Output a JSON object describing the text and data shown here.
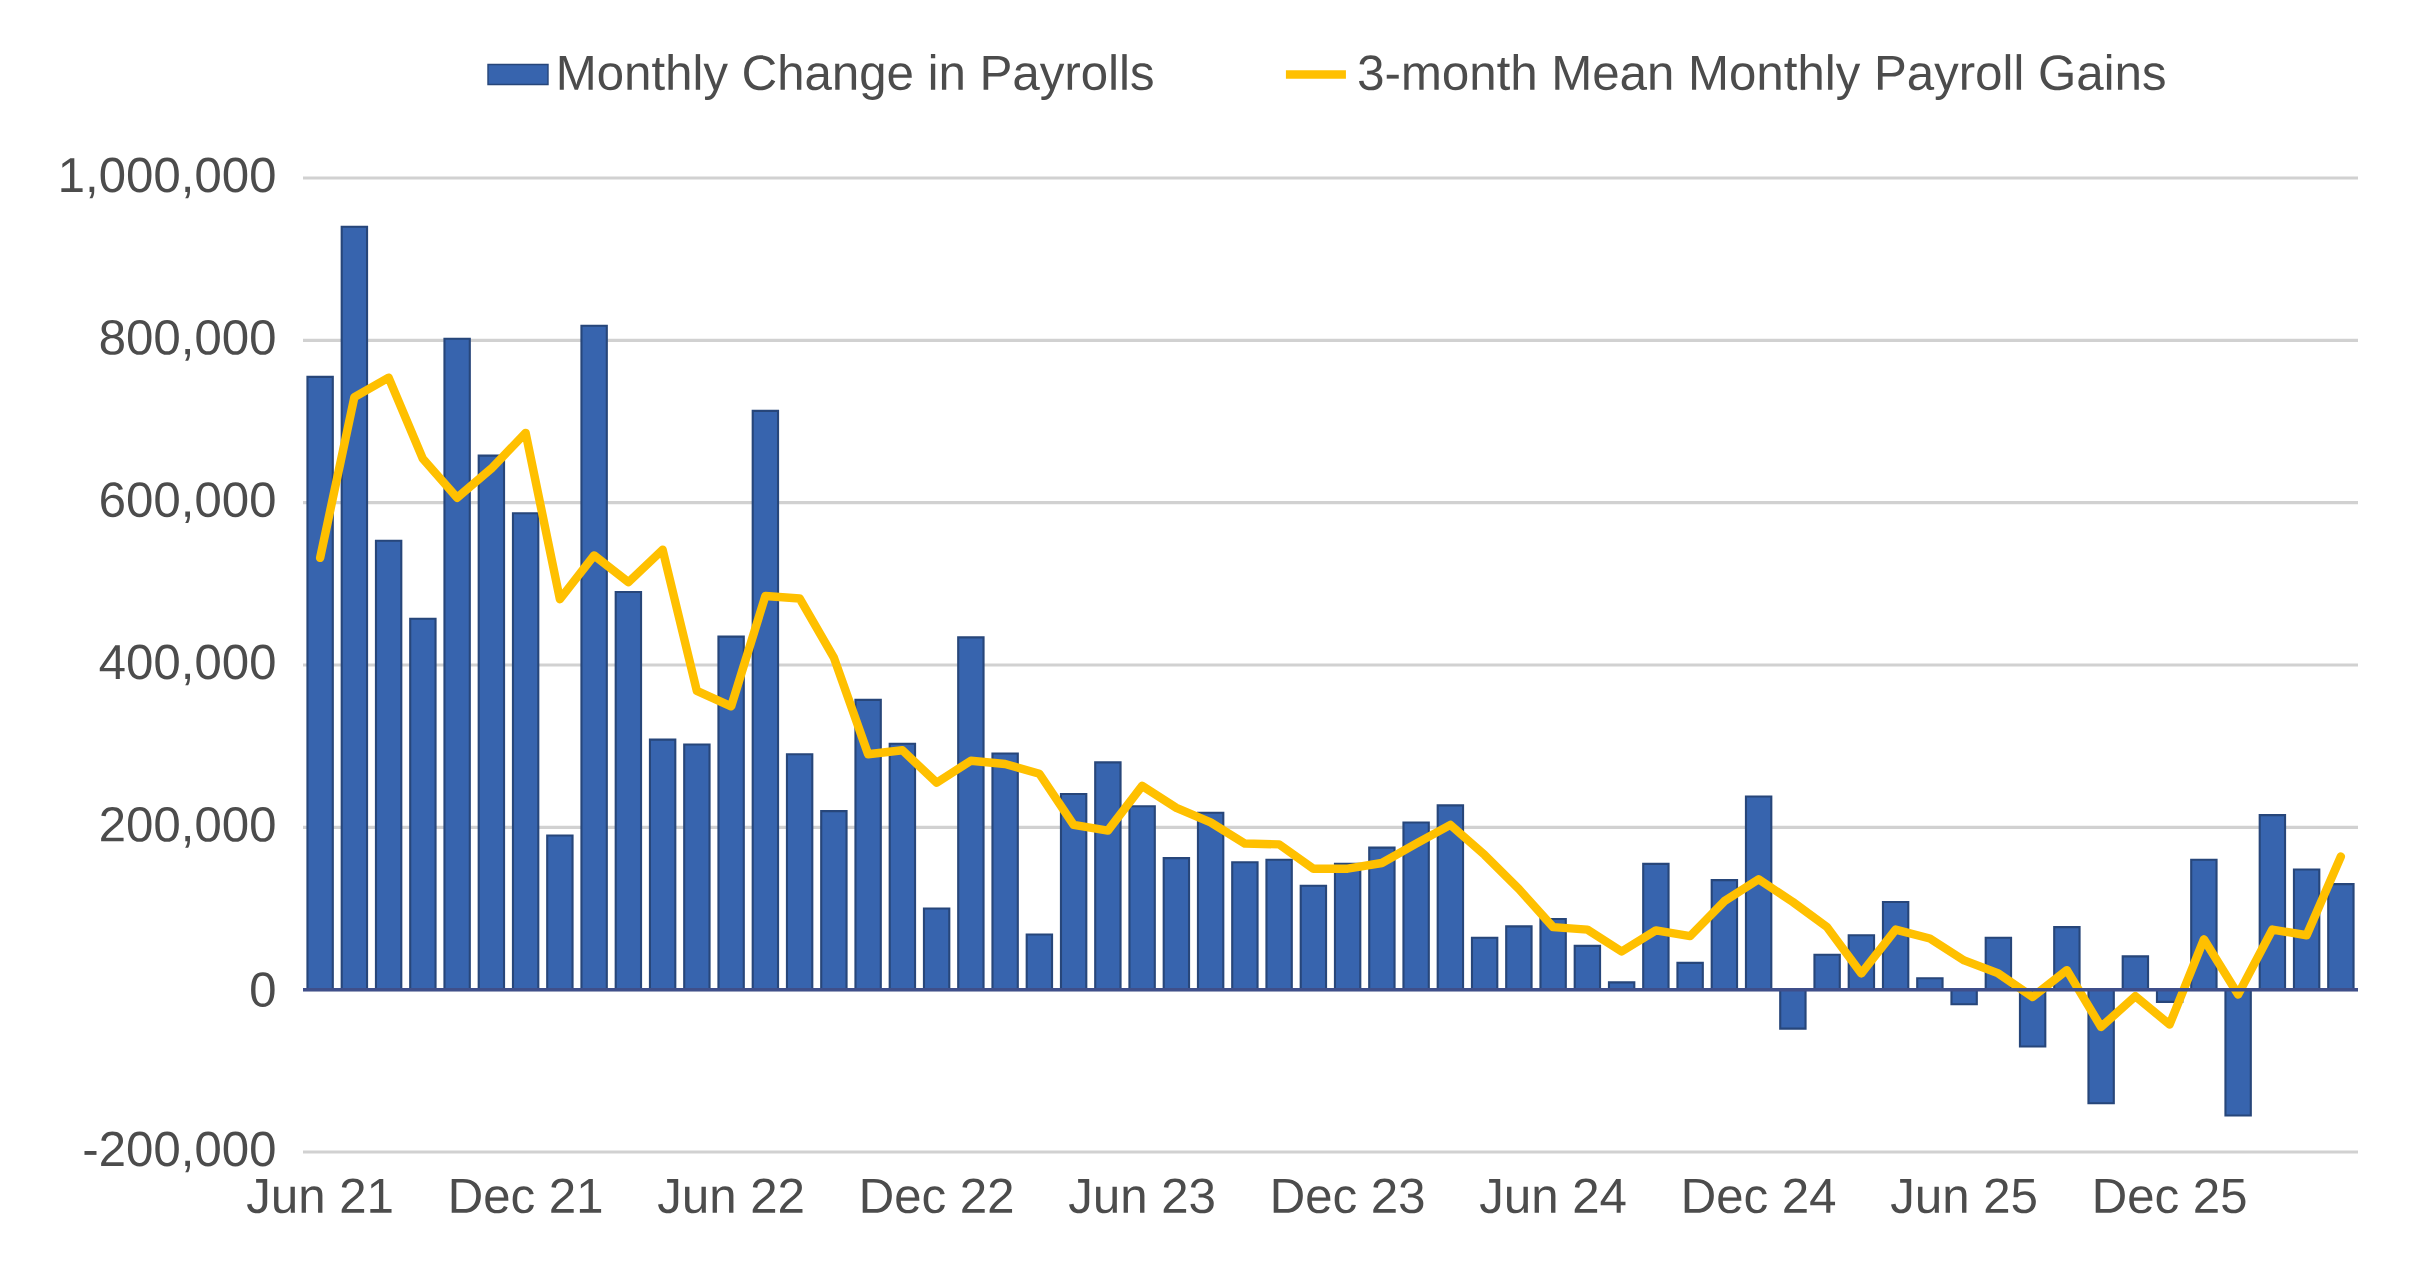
{
  "chart_data": {
    "type": "bar",
    "categories": [
      "Jun 21",
      null,
      null,
      null,
      null,
      null,
      "Dec 21",
      null,
      null,
      null,
      null,
      null,
      "Jun 22",
      null,
      null,
      null,
      null,
      null,
      "Dec 22",
      null,
      null,
      null,
      null,
      null,
      "Jun 23",
      null,
      null,
      null,
      null,
      null,
      "Dec 23",
      null,
      null,
      null,
      null,
      null,
      "Jun 24",
      null,
      null,
      null,
      null,
      null,
      "Dec 24",
      null,
      null,
      null,
      null,
      null,
      "Jun 25",
      null,
      null,
      null,
      null,
      null,
      "Dec 25",
      null,
      null,
      null,
      null,
      null
    ],
    "series": [
      {
        "name": "Monthly Change in Payrolls",
        "color": "#3764ae",
        "values": [
          755000,
          940000,
          553000,
          457000,
          802000,
          658000,
          587000,
          190000,
          818000,
          490000,
          308000,
          302000,
          435000,
          713000,
          290000,
          220000,
          357000,
          303000,
          100000,
          434000,
          291000,
          68000,
          241000,
          280000,
          226000,
          162000,
          218000,
          157000,
          160000,
          128000,
          155000,
          175000,
          206000,
          227000,
          64000,
          78000,
          87000,
          54000,
          9000,
          155000,
          33000,
          135000,
          238000,
          -48000,
          43000,
          67000,
          108000,
          14000,
          -18000,
          64000,
          -70000,
          77000,
          -140000,
          41000,
          -15000,
          160000,
          -155000,
          215000,
          148000,
          130000
        ]
      },
      {
        "name": "3-month Mean Monthly Payroll Gains",
        "type": "line",
        "color": "#ffc000",
        "values": [
          532000,
          730000,
          754000,
          654000,
          606000,
          642000,
          686000,
          481000,
          535000,
          502000,
          542000,
          368000,
          349000,
          485000,
          482000,
          409000,
          290000,
          295000,
          255000,
          282000,
          278000,
          266000,
          203000,
          196000,
          251000,
          224000,
          206000,
          180000,
          179000,
          149000,
          149000,
          156000,
          180000,
          203000,
          166000,
          124000,
          77000,
          74000,
          47000,
          73000,
          66000,
          109000,
          136000,
          108000,
          77000,
          20000,
          74000,
          63000,
          36000,
          20000,
          -9000,
          24000,
          -46000,
          -8000,
          -43000,
          62000,
          -6000,
          74000,
          67000,
          164000
        ]
      }
    ],
    "ylim": [
      -200000,
      1000000
    ],
    "yticks": [
      {
        "value": -200000,
        "label": "-200,000"
      },
      {
        "value": 0,
        "label": "0"
      },
      {
        "value": 200000,
        "label": "200,000"
      },
      {
        "value": 400000,
        "label": "400,000"
      },
      {
        "value": 600000,
        "label": "600,000"
      },
      {
        "value": 800000,
        "label": "800,000"
      },
      {
        "value": 1000000,
        "label": "1,000,000"
      }
    ],
    "ref_lines": [
      {
        "axis": "y",
        "value": 0,
        "color": "#3f4f8a"
      }
    ],
    "grid": "y",
    "legend": "top",
    "marker": "none",
    "line_style": "solid"
  }
}
